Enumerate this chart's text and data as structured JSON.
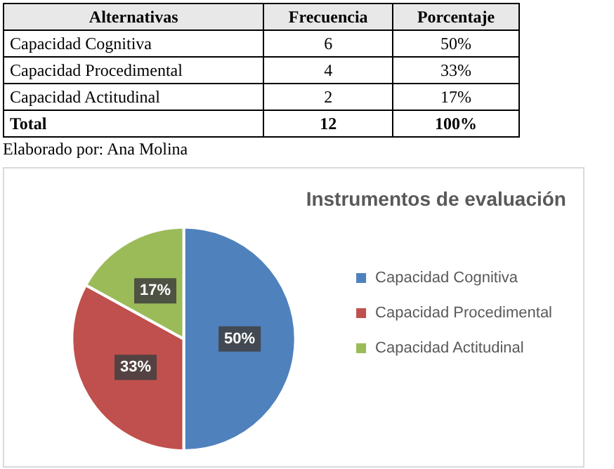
{
  "chart_data": {
    "type": "pie",
    "title": "Instrumentos de evaluación",
    "categories": [
      "Capacidad Cognitiva",
      "Capacidad Procedimental",
      "Capacidad Actitudinal"
    ],
    "values": [
      50,
      33,
      17
    ],
    "colors": [
      "#4f81bd",
      "#c0504d",
      "#9bbb59"
    ],
    "value_labels": [
      "50%",
      "33%",
      "17%"
    ],
    "legend": "right",
    "annotations": [
      "Alternativas",
      "Frecuencia",
      "Porcentaje",
      "Capacidad Cognitiva",
      "6",
      "50%",
      "Capacidad Procedimental",
      "4",
      "33%",
      "Capacidad Actitudinal",
      "2",
      "17%",
      "Total",
      "12",
      "100%",
      "Elaborado por: Ana Molina"
    ]
  }
}
